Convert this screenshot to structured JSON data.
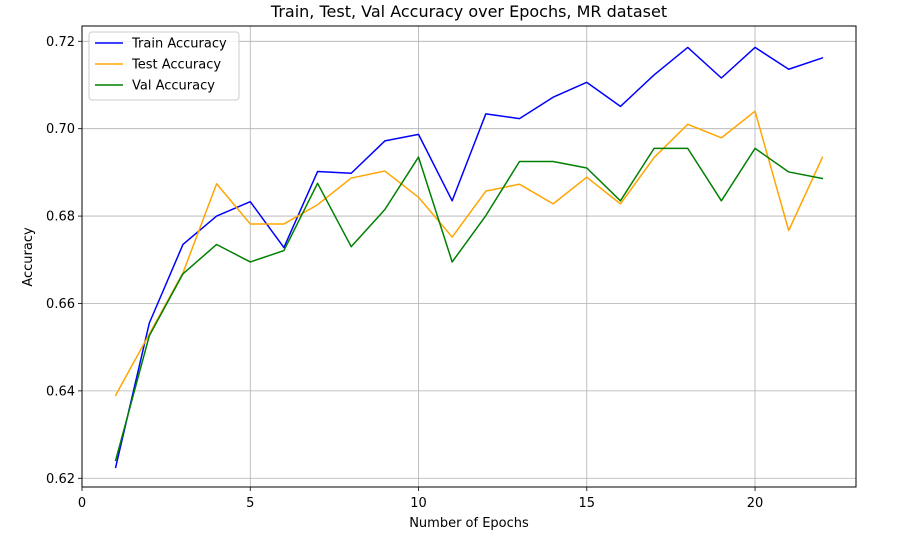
{
  "chart_data": {
    "type": "line",
    "title": "Train, Test, Val Accuracy over Epochs, MR dataset",
    "xlabel": "Number of Epochs",
    "ylabel": "Accuracy",
    "xlim": [
      0,
      23
    ],
    "ylim": [
      0.618,
      0.7235
    ],
    "xticks": [
      0,
      5,
      10,
      15,
      20
    ],
    "yticks": [
      0.62,
      0.64,
      0.66,
      0.68,
      0.7,
      0.72
    ],
    "ytick_labels": [
      "0.62",
      "0.64",
      "0.66",
      "0.68",
      "0.70",
      "0.72"
    ],
    "grid": true,
    "legend_position": "top-left",
    "x": [
      1,
      2,
      3,
      4,
      5,
      6,
      7,
      8,
      9,
      10,
      11,
      12,
      13,
      14,
      15,
      16,
      17,
      18,
      19,
      20,
      21,
      22
    ],
    "series": [
      {
        "name": "Train Accuracy",
        "color": "#0000ff",
        "values": [
          0.6225,
          0.6555,
          0.6735,
          0.68,
          0.6833,
          0.6728,
          0.6902,
          0.6898,
          0.6972,
          0.6987,
          0.6835,
          0.7034,
          0.7023,
          0.7072,
          0.7106,
          0.7051,
          0.7123,
          0.7186,
          0.7116,
          0.7186,
          0.7136,
          0.7162
        ]
      },
      {
        "name": "Test Accuracy",
        "color": "#ffa500",
        "values": [
          0.639,
          0.653,
          0.667,
          0.6874,
          0.6782,
          0.6782,
          0.6826,
          0.6887,
          0.6903,
          0.6843,
          0.6752,
          0.6857,
          0.6873,
          0.6828,
          0.6889,
          0.6828,
          0.6934,
          0.701,
          0.6979,
          0.704,
          0.6767,
          0.6934
        ]
      },
      {
        "name": "Val Accuracy",
        "color": "#008000",
        "values": [
          0.6241,
          0.6526,
          0.6668,
          0.6735,
          0.6695,
          0.6721,
          0.6875,
          0.673,
          0.6815,
          0.6935,
          0.6695,
          0.6801,
          0.6925,
          0.6925,
          0.691,
          0.6835,
          0.6955,
          0.6955,
          0.6835,
          0.6955,
          0.6901,
          0.6886
        ]
      }
    ]
  }
}
